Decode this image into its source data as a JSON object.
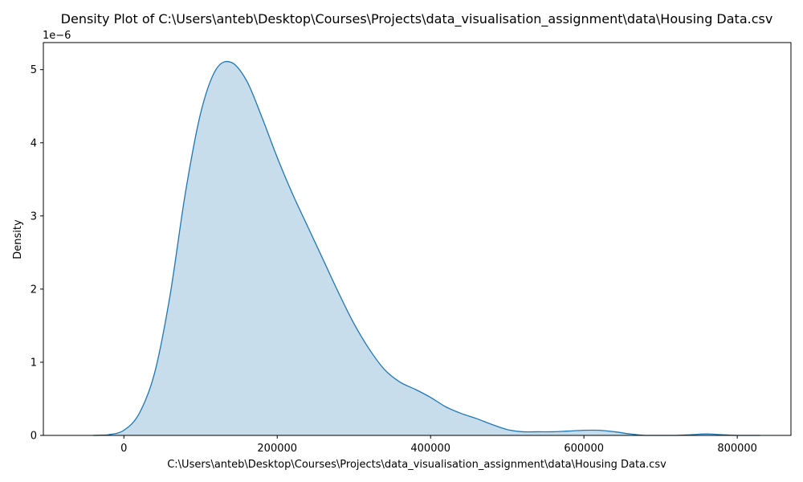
{
  "chart_data": {
    "type": "area",
    "title": "Density Plot of C:\\Users\\anteb\\Desktop\\Courses\\Projects\\data_visualisation_assignment\\data\\Housing Data.csv",
    "xlabel": "C:\\Users\\anteb\\Desktop\\Courses\\Projects\\data_visualisation_assignment\\data\\Housing Data.csv",
    "ylabel": "Density",
    "y_offset_label": "1e−6",
    "xlim": [
      -105000,
      870000
    ],
    "ylim": [
      0,
      5.37
    ],
    "x_ticks": [
      0,
      200000,
      400000,
      600000,
      800000
    ],
    "x_tick_labels": [
      "0",
      "200000",
      "400000",
      "600000",
      "800000"
    ],
    "y_ticks": [
      0,
      1,
      2,
      3,
      4,
      5
    ],
    "y_tick_labels": [
      "0",
      "1",
      "2",
      "3",
      "4",
      "5"
    ],
    "grid": false,
    "line_color": "#1f77b4",
    "fill_color": "#1f77b4",
    "fill_opacity": 0.25,
    "series": [
      {
        "x": [
          -40000,
          -20000,
          0,
          20000,
          40000,
          60000,
          80000,
          100000,
          120000,
          140000,
          160000,
          180000,
          200000,
          220000,
          240000,
          260000,
          280000,
          300000,
          320000,
          340000,
          360000,
          380000,
          400000,
          420000,
          440000,
          460000,
          480000,
          500000,
          520000,
          540000,
          560000,
          580000,
          600000,
          620000,
          640000,
          660000,
          680000,
          700000,
          720000,
          740000,
          760000,
          780000,
          800000,
          830000
        ],
        "y": [
          0.0,
          0.01,
          0.07,
          0.3,
          0.85,
          1.9,
          3.3,
          4.4,
          5.0,
          5.1,
          4.85,
          4.35,
          3.8,
          3.3,
          2.85,
          2.4,
          1.95,
          1.53,
          1.18,
          0.9,
          0.73,
          0.63,
          0.52,
          0.39,
          0.3,
          0.23,
          0.15,
          0.08,
          0.05,
          0.05,
          0.05,
          0.06,
          0.07,
          0.07,
          0.05,
          0.02,
          0.0,
          0.0,
          0.0,
          0.01,
          0.02,
          0.01,
          0.0,
          0.0
        ]
      }
    ]
  }
}
